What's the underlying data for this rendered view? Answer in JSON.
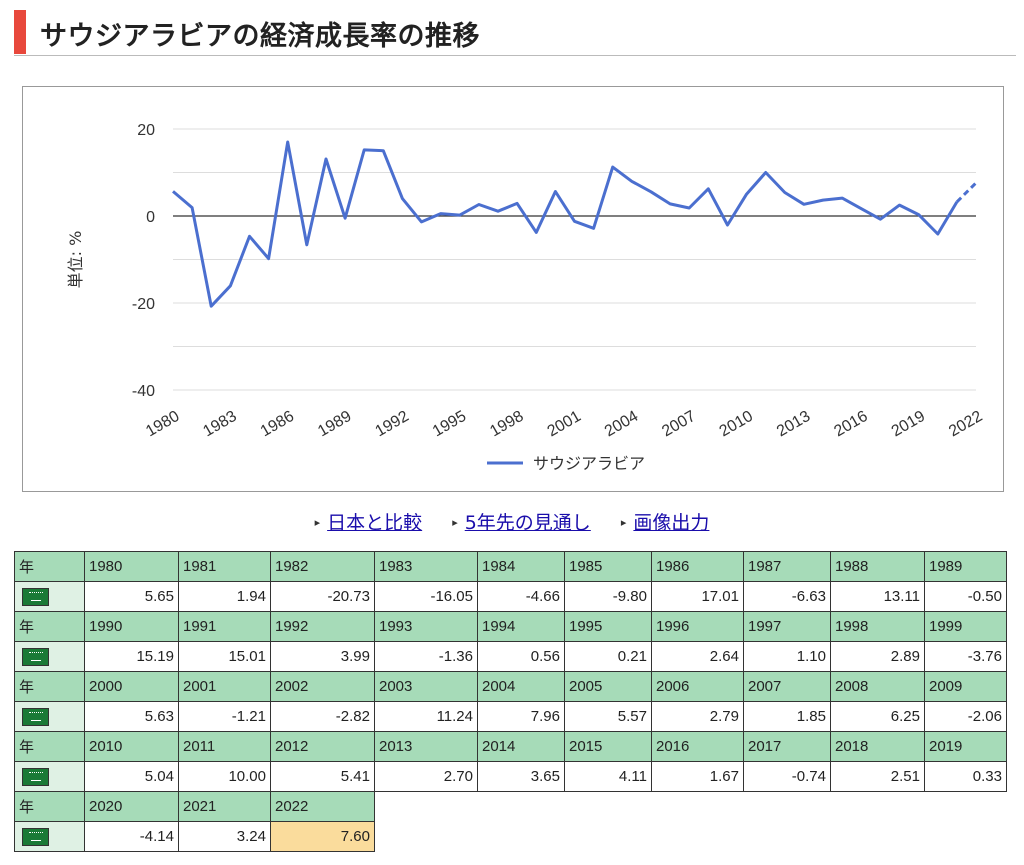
{
  "page": {
    "title": "サウジアラビアの経済成長率の推移"
  },
  "links": [
    {
      "label": "日本と比較"
    },
    {
      "label": "5年先の見通し"
    },
    {
      "label": "画像出力"
    }
  ],
  "table": {
    "year_label": "年",
    "flag_icon": "saudi-arabia-flag-icon"
  },
  "colors": {
    "line": "#4b6fcf",
    "header_bg": "#a6dbb8",
    "highlight": "#fadc9c",
    "title_accent": "#e8483c"
  },
  "chart_data": {
    "type": "line",
    "title": "",
    "xlabel": "",
    "ylabel": "単位: %",
    "ylim": [
      -40,
      20
    ],
    "yticks": [
      -40,
      -20,
      0,
      20
    ],
    "xticks": [
      1980,
      1983,
      1986,
      1989,
      1992,
      1995,
      1998,
      2001,
      2004,
      2007,
      2010,
      2013,
      2016,
      2019,
      2022
    ],
    "grid": true,
    "legend": "bottom",
    "forecast_from": 2021,
    "x": [
      1980,
      1981,
      1982,
      1983,
      1984,
      1985,
      1986,
      1987,
      1988,
      1989,
      1990,
      1991,
      1992,
      1993,
      1994,
      1995,
      1996,
      1997,
      1998,
      1999,
      2000,
      2001,
      2002,
      2003,
      2004,
      2005,
      2006,
      2007,
      2008,
      2009,
      2010,
      2011,
      2012,
      2013,
      2014,
      2015,
      2016,
      2017,
      2018,
      2019,
      2020,
      2021,
      2022
    ],
    "series": [
      {
        "name": "サウジアラビア",
        "values": [
          "5.65",
          "1.94",
          "-20.73",
          "-16.05",
          "-4.66",
          "-9.80",
          "17.01",
          "-6.63",
          "13.11",
          "-0.50",
          "15.19",
          "15.01",
          "3.99",
          "-1.36",
          "0.56",
          "0.21",
          "2.64",
          "1.10",
          "2.89",
          "-3.76",
          "5.63",
          "-1.21",
          "-2.82",
          "11.24",
          "7.96",
          "5.57",
          "2.79",
          "1.85",
          "6.25",
          "-2.06",
          "5.04",
          "10.00",
          "5.41",
          "2.70",
          "3.65",
          "4.11",
          "1.67",
          "-0.74",
          "2.51",
          "0.33",
          "-4.14",
          "3.24",
          "7.60"
        ]
      }
    ]
  }
}
